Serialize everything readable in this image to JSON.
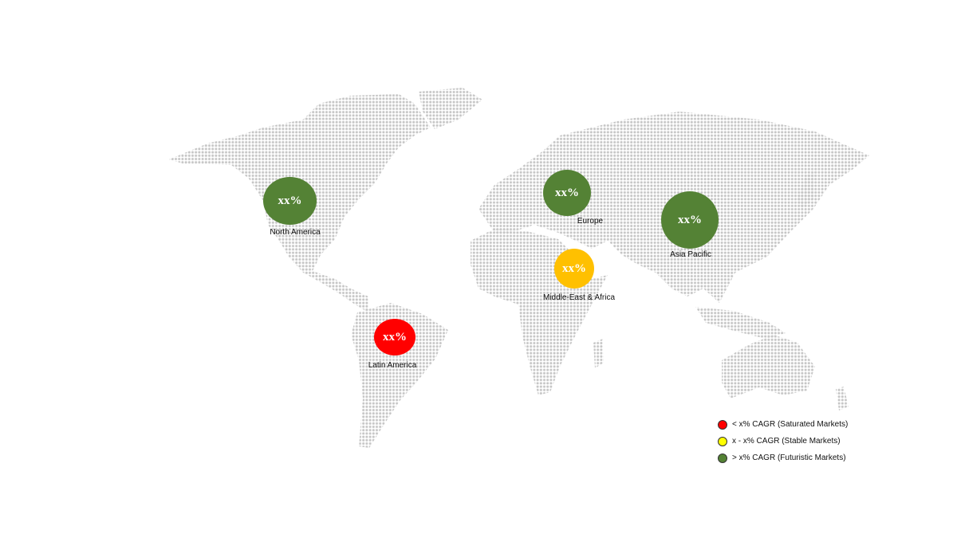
{
  "colors": {
    "futuristic": "#548235",
    "stable_bubble": "#ffc000",
    "saturated": "#ff0000",
    "stable_legend": "#ffff00",
    "land_dots": "#c6c6c6"
  },
  "regions": [
    {
      "name": "North America",
      "value": "xx%",
      "category": "futuristic"
    },
    {
      "name": "Europe",
      "value": "xx%",
      "category": "futuristic"
    },
    {
      "name": "Asia Pacific",
      "value": "xx%",
      "category": "futuristic"
    },
    {
      "name": "Middle-East & Africa",
      "value": "xx%",
      "category": "stable"
    },
    {
      "name": "Latin America",
      "value": "xx%",
      "category": "saturated"
    }
  ],
  "legend": [
    {
      "label": "< x% CAGR (Saturated Markets)",
      "color": "#ff0000"
    },
    {
      "label": "x - x% CAGR (Stable Markets)",
      "color": "#ffff00"
    },
    {
      "label": "> x% CAGR (Futuristic Markets)",
      "color": "#548235"
    }
  ]
}
